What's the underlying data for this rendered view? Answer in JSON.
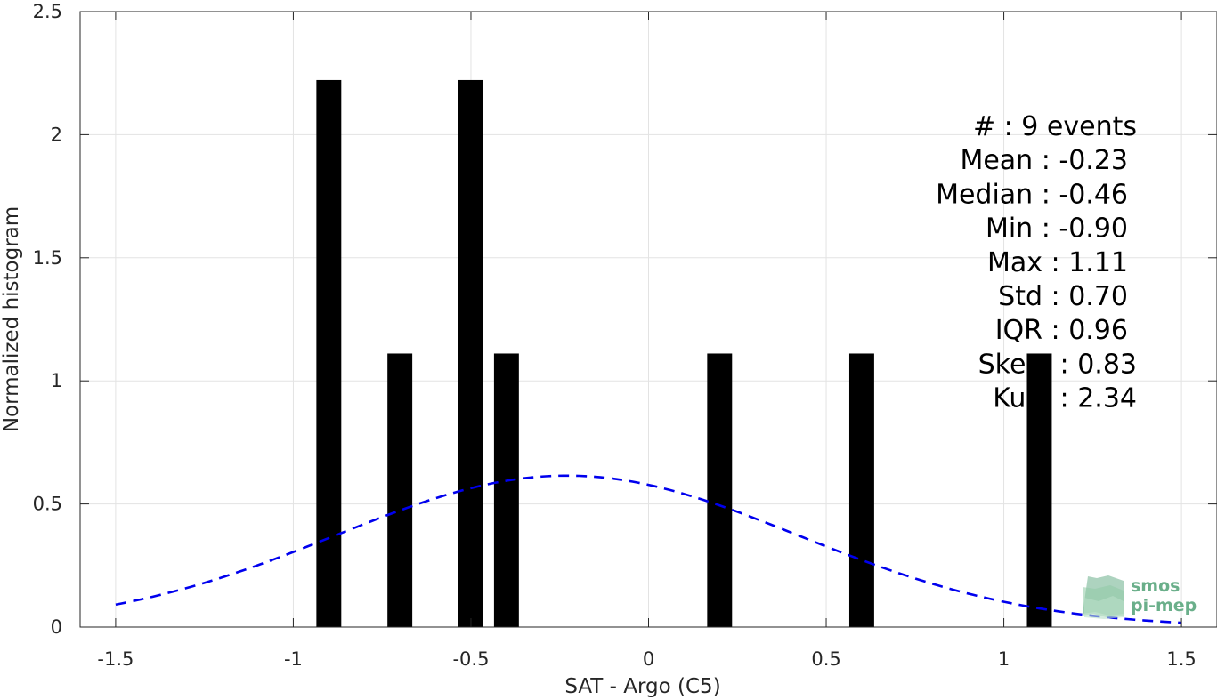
{
  "chart_data": {
    "type": "bar",
    "title": "",
    "xlabel": "SAT - Argo (C5)",
    "ylabel": "Normalized histogram",
    "xlim": [
      -1.6,
      1.6
    ],
    "ylim": [
      0,
      2.5
    ],
    "xticks": [
      -1.5,
      -1,
      -0.5,
      0,
      0.5,
      1,
      1.5
    ],
    "xtick_labels": [
      "-1.5",
      "-1",
      "-0.5",
      "0",
      "0.5",
      "1",
      "1.5"
    ],
    "yticks": [
      0,
      0.5,
      1,
      1.5,
      2,
      2.5
    ],
    "ytick_labels": [
      "0",
      "0.5",
      "1",
      "1.5",
      "2",
      "2.5"
    ],
    "grid": true,
    "bar_color": "#000000",
    "bar_width": 0.07,
    "bars": [
      {
        "x": -0.9,
        "y": 2.222
      },
      {
        "x": -0.7,
        "y": 1.111
      },
      {
        "x": -0.5,
        "y": 2.222
      },
      {
        "x": -0.4,
        "y": 1.111
      },
      {
        "x": 0.2,
        "y": 1.111
      },
      {
        "x": 0.6,
        "y": 1.111
      },
      {
        "x": 1.1,
        "y": 1.111
      }
    ],
    "fit_curve": {
      "style": "dashed",
      "color": "#0000ee",
      "mean": -0.23,
      "std": 0.65,
      "peak": 0.615,
      "x_range": [
        -1.5,
        1.5
      ]
    },
    "stats": [
      {
        "label": "#  : 9 events",
        "anchor": "end-right"
      },
      {
        "label": "Mean : -0.23",
        "anchor": "end"
      },
      {
        "label": "Median : -0.46",
        "anchor": "end"
      },
      {
        "label": "Min : -0.90",
        "anchor": "end"
      },
      {
        "label": "Max : 1.11",
        "anchor": "end"
      },
      {
        "label": "Std : 0.70",
        "anchor": "end"
      },
      {
        "label": "IQR : 0.96",
        "anchor": "end"
      },
      {
        "label": "Ske... : 0.83",
        "anchor": "end-right"
      },
      {
        "label": "Ku... : 2.34",
        "anchor": "end-right"
      }
    ]
  },
  "logo": {
    "line1": "smos",
    "line2": "pi-mep",
    "color": "#6aaf8a"
  }
}
